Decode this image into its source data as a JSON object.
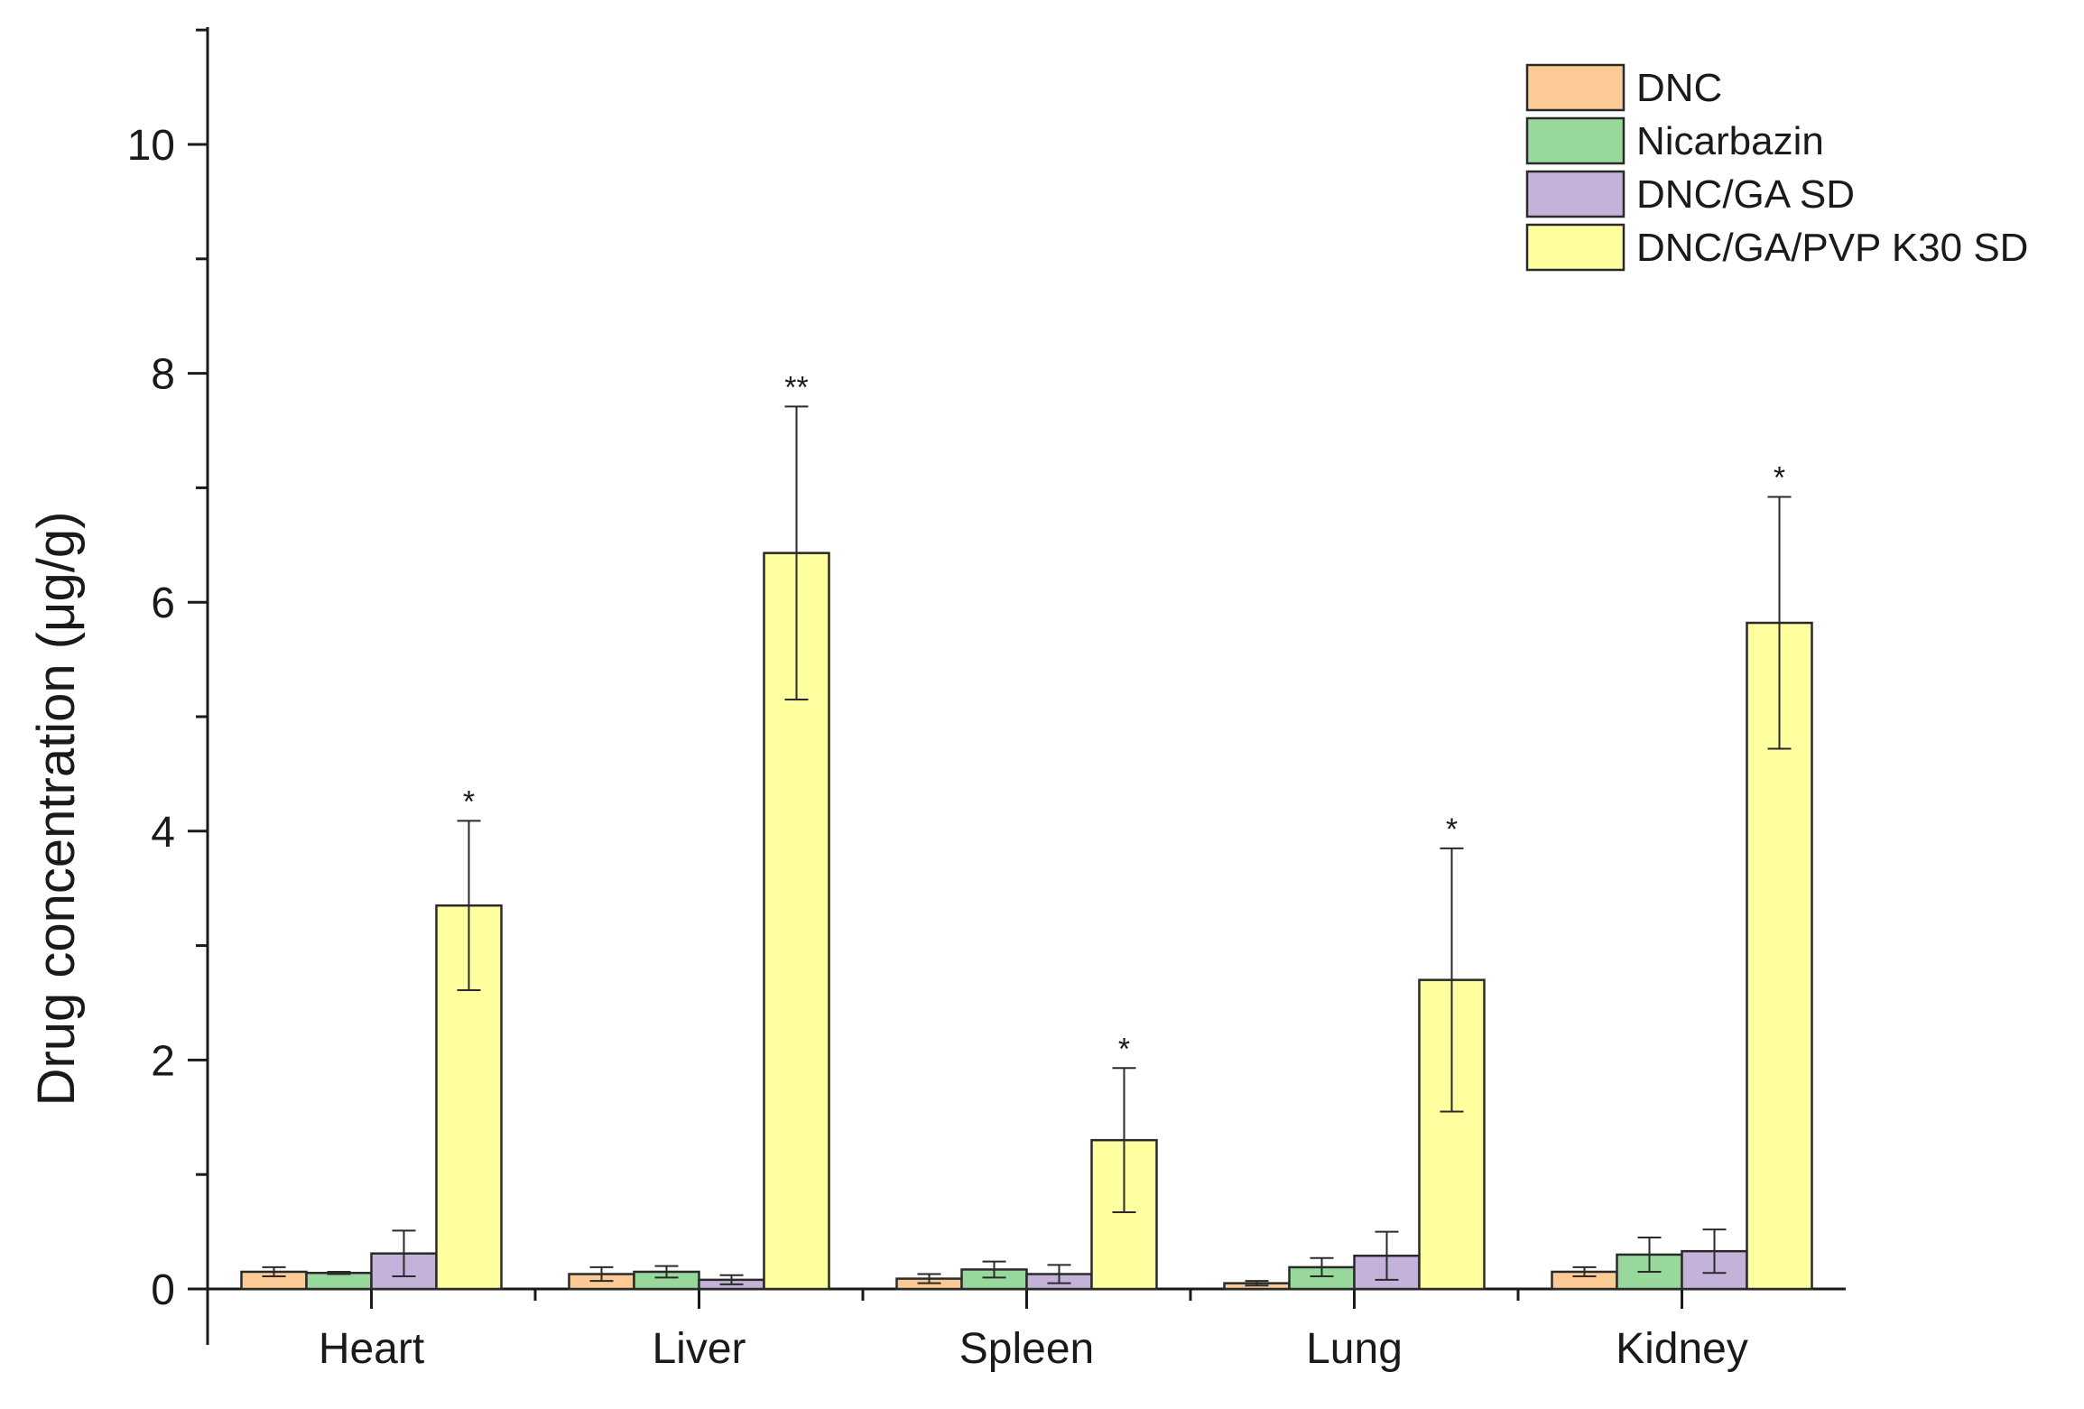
{
  "chart_data": {
    "type": "bar",
    "title": "",
    "xlabel": "",
    "ylabel": "Drug concentration (μg/g)",
    "ylim": [
      0,
      11
    ],
    "yticks": [
      0,
      2,
      4,
      6,
      8,
      10
    ],
    "categories": [
      "Heart",
      "Liver",
      "Spleen",
      "Lung",
      "Kidney"
    ],
    "legend_position": "top-right",
    "series": [
      {
        "name": "DNC",
        "color": "#FCCB95",
        "values": [
          0.15,
          0.13,
          0.09,
          0.05,
          0.15
        ],
        "errors": [
          0.04,
          0.06,
          0.04,
          0.02,
          0.04
        ]
      },
      {
        "name": "Nicarbazin",
        "color": "#98D99B",
        "values": [
          0.14,
          0.15,
          0.17,
          0.19,
          0.3
        ],
        "errors": [
          0.01,
          0.05,
          0.07,
          0.08,
          0.15
        ]
      },
      {
        "name": "DNC/GA SD",
        "color": "#C4B2DB",
        "values": [
          0.31,
          0.08,
          0.13,
          0.29,
          0.33
        ],
        "errors": [
          0.2,
          0.04,
          0.08,
          0.21,
          0.19
        ]
      },
      {
        "name": "DNC/GA/PVP K30 SD",
        "color": "#FFFFA0",
        "values": [
          3.35,
          6.43,
          1.3,
          2.7,
          5.82
        ],
        "errors": [
          0.74,
          1.28,
          0.63,
          1.15,
          1.1
        ],
        "significance": [
          "*",
          "**",
          "*",
          "*",
          "*"
        ]
      }
    ]
  }
}
